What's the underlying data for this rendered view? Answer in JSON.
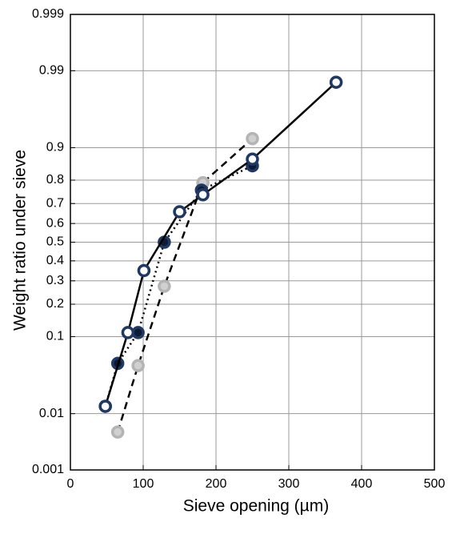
{
  "chart_data": {
    "type": "line",
    "x_label": "Sieve opening (µm)",
    "y_label": "Weight ratio under sieve",
    "yscale": "probit",
    "grid": true,
    "xlim": [
      0,
      500
    ],
    "xticks": [
      0,
      100,
      200,
      300,
      400,
      500
    ],
    "ylim": [
      0.001,
      0.999
    ],
    "yticks": [
      0.001,
      0.01,
      0.1,
      0.2,
      0.3,
      0.4,
      0.5,
      0.6,
      0.7,
      0.8,
      0.9,
      0.99,
      0.999
    ],
    "series": [
      {
        "x": [
          65,
          93,
          129,
          182,
          250
        ],
        "values": [
          0.005,
          0.047,
          0.275,
          0.79,
          0.92
        ],
        "color": "#d0d0d0",
        "edge_color": "#b4b4b4",
        "line_color": "#000000",
        "line_style": "dashed"
      },
      {
        "x": [
          48,
          65,
          93,
          129,
          180,
          250
        ],
        "values": [
          0.013,
          0.05,
          0.11,
          0.5,
          0.76,
          0.85
        ],
        "color": "#0d1b33",
        "edge_color": "#1f3864",
        "line_color": "#000000",
        "line_style": "dotted"
      },
      {
        "x": [
          48,
          79,
          101,
          150,
          182,
          250,
          365
        ],
        "values": [
          0.013,
          0.11,
          0.35,
          0.66,
          0.74,
          0.87,
          0.985
        ],
        "color": "#ffffff",
        "edge_color": "#1f3864",
        "line_color": "#000000",
        "line_style": "solid"
      }
    ]
  }
}
